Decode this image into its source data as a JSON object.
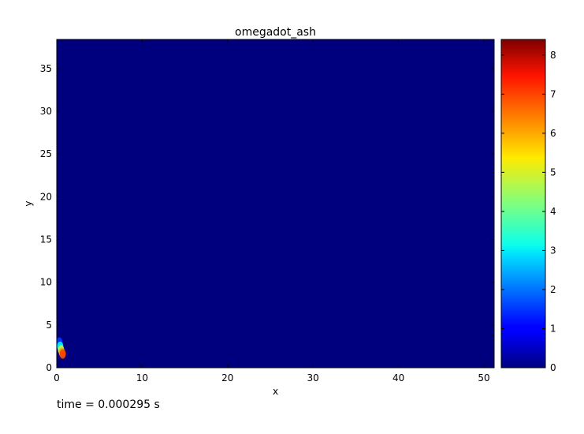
{
  "chart_data": {
    "type": "heatmap",
    "title": "omegadot_ash",
    "xlabel": "x",
    "ylabel": "y",
    "xlim": [
      0,
      51.2
    ],
    "ylim": [
      0,
      38.4
    ],
    "x_ticks": [
      0,
      10,
      20,
      30,
      40,
      50
    ],
    "y_ticks": [
      0,
      5,
      10,
      15,
      20,
      25,
      30,
      35
    ],
    "colormap": "jet",
    "background_value": 0,
    "colorbar": {
      "range": [
        0,
        8.4
      ],
      "ticks": [
        0,
        1,
        2,
        3,
        4,
        5,
        6,
        7,
        8
      ]
    },
    "hotspots": [
      {
        "x": 0.3,
        "y": 3.0,
        "value": 1.5
      },
      {
        "x": 0.4,
        "y": 2.5,
        "value": 3.0
      },
      {
        "x": 0.5,
        "y": 2.1,
        "value": 4.5
      },
      {
        "x": 0.6,
        "y": 1.8,
        "value": 6.0
      },
      {
        "x": 0.7,
        "y": 1.6,
        "value": 6.8
      }
    ],
    "annotation": "time = 0.000295 s"
  }
}
